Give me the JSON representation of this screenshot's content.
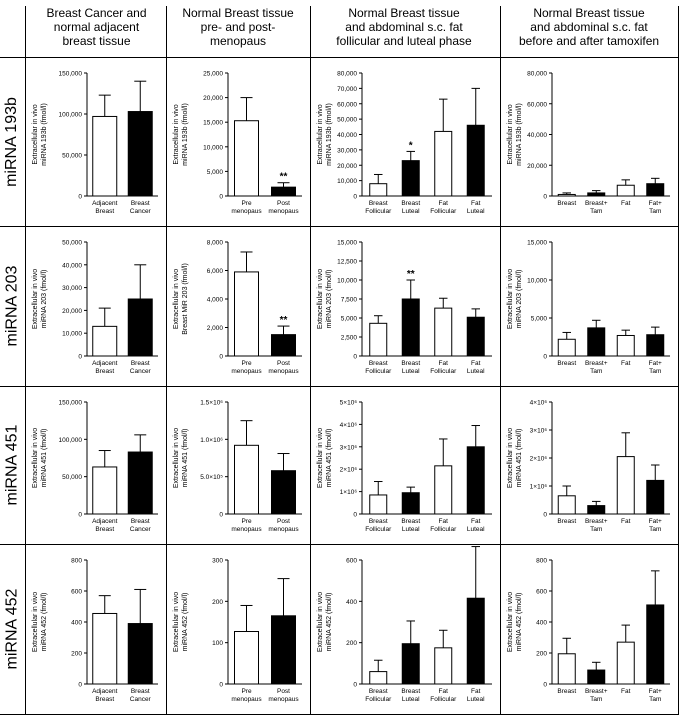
{
  "column_headers": [
    "Breast Cancer and\nnormal adjacent\nbreast tissue",
    "Normal Breast tissue\npre- and post-\nmenopaus",
    "Normal Breast tissue\nand abdominal s.c. fat\nfollicular and luteal phase",
    "Normal Breast tissue\nand abdominal s.c. fat\nbefore and after tamoxifen"
  ],
  "row_headers": [
    "miRNA 193b",
    "miRNA 203",
    "miRNA 451",
    "miRNA 452"
  ],
  "chart_data": [
    {
      "type": "bar",
      "row": 0,
      "col": 0,
      "ylabel": [
        "Extracellular in vivo",
        "miRNA 193b (fmol/l)"
      ],
      "ylim": [
        0,
        150000
      ],
      "ticks": [
        "0",
        "50,000",
        "100,000",
        "150,000"
      ],
      "categories": [
        [
          "Adjacent",
          "Breast"
        ],
        [
          "Breast",
          "Cancer"
        ]
      ],
      "values": [
        97000,
        103000
      ],
      "errors": [
        26000,
        37000
      ],
      "fills": [
        "white",
        "black"
      ],
      "annotations": [
        "",
        ""
      ]
    },
    {
      "type": "bar",
      "row": 0,
      "col": 1,
      "ylabel": [
        "Extracellular in vivo",
        "miRNA 193b (fmol/l)"
      ],
      "ylim": [
        0,
        25000
      ],
      "ticks": [
        "0",
        "5,000",
        "10,000",
        "15,000",
        "20,000",
        "25,000"
      ],
      "categories": [
        [
          "Pre",
          "menopaus"
        ],
        [
          "Post",
          "menopaus"
        ]
      ],
      "values": [
        15300,
        1800
      ],
      "errors": [
        4700,
        900
      ],
      "fills": [
        "white",
        "black"
      ],
      "annotations": [
        "",
        "**"
      ]
    },
    {
      "type": "bar",
      "row": 0,
      "col": 2,
      "ylabel": [
        "Extracellular in vivo",
        "miRNA 193b (fmol/l)"
      ],
      "ylim": [
        0,
        80000
      ],
      "ticks": [
        "0",
        "10,000",
        "20,000",
        "30,000",
        "40,000",
        "50,000",
        "60,000",
        "70,000",
        "80,000"
      ],
      "categories": [
        [
          "Breast",
          "Follicular"
        ],
        [
          "Breast",
          "Luteal"
        ],
        [
          "Fat",
          "Follicular"
        ],
        [
          "Fat",
          "Luteal"
        ]
      ],
      "values": [
        8000,
        23000,
        42000,
        46000
      ],
      "errors": [
        6000,
        6000,
        21000,
        24000
      ],
      "fills": [
        "white",
        "black",
        "white",
        "black"
      ],
      "annotations": [
        "",
        "*",
        "",
        ""
      ]
    },
    {
      "type": "bar",
      "row": 0,
      "col": 3,
      "ylabel": [
        "Extracellular in vivo",
        "miRNA 193b (fmol/l)"
      ],
      "ylim": [
        0,
        80000
      ],
      "ticks": [
        "0",
        "20,000",
        "40,000",
        "60,000",
        "80,000"
      ],
      "categories": [
        [
          "Breast"
        ],
        [
          "Breast+",
          "Tam"
        ],
        [
          "Fat"
        ],
        [
          "Fat+",
          "Tam"
        ]
      ],
      "values": [
        1000,
        2000,
        7000,
        8000
      ],
      "errors": [
        1000,
        1500,
        3500,
        3500
      ],
      "fills": [
        "white",
        "black",
        "white",
        "black"
      ],
      "annotations": [
        "",
        "",
        "",
        ""
      ]
    },
    {
      "type": "bar",
      "row": 1,
      "col": 0,
      "ylabel": [
        "Extracellular in vivo",
        "miRNA 203 (fmol/l)"
      ],
      "ylim": [
        0,
        50000
      ],
      "ticks": [
        "0",
        "10,000",
        "20,000",
        "30,000",
        "40,000",
        "50,000"
      ],
      "categories": [
        [
          "Adjacent",
          "Breast"
        ],
        [
          "Breast",
          "Cancer"
        ]
      ],
      "values": [
        13000,
        25000
      ],
      "errors": [
        8000,
        15000
      ],
      "fills": [
        "white",
        "black"
      ],
      "annotations": [
        "",
        ""
      ]
    },
    {
      "type": "bar",
      "row": 1,
      "col": 1,
      "ylabel": [
        "Extracellular in vivo",
        "Breast MiR 203 (fmol/l)"
      ],
      "ylim": [
        0,
        8000
      ],
      "ticks": [
        "0",
        "2,000",
        "4,000",
        "6,000",
        "8,000"
      ],
      "categories": [
        [
          "Pre",
          "menopaus"
        ],
        [
          "Post",
          "menopaus"
        ]
      ],
      "values": [
        5900,
        1500
      ],
      "errors": [
        1400,
        600
      ],
      "fills": [
        "white",
        "black"
      ],
      "annotations": [
        "",
        "**"
      ]
    },
    {
      "type": "bar",
      "row": 1,
      "col": 2,
      "ylabel": [
        "Extracellular in vivo",
        "miRNA 203 (fmol/l)"
      ],
      "ylim": [
        0,
        15000
      ],
      "ticks": [
        "0",
        "2,500",
        "5,000",
        "7,500",
        "10,000",
        "12,500",
        "15,000"
      ],
      "categories": [
        [
          "Breast",
          "Follicular"
        ],
        [
          "Breast",
          "Luteal"
        ],
        [
          "Fat",
          "Follicular"
        ],
        [
          "Fat",
          "Luteal"
        ]
      ],
      "values": [
        4300,
        7500,
        6300,
        5100
      ],
      "errors": [
        1000,
        2500,
        1300,
        1100
      ],
      "fills": [
        "white",
        "black",
        "white",
        "black"
      ],
      "annotations": [
        "",
        "**",
        "",
        ""
      ]
    },
    {
      "type": "bar",
      "row": 1,
      "col": 3,
      "ylabel": [
        "Extracellular in vivo",
        "miRNA 203 (fmol/l)"
      ],
      "ylim": [
        0,
        15000
      ],
      "ticks": [
        "0",
        "5,000",
        "10,000",
        "15,000"
      ],
      "categories": [
        [
          "Breast"
        ],
        [
          "Breast+",
          "Tam"
        ],
        [
          "Fat"
        ],
        [
          "Fat+",
          "Tam"
        ]
      ],
      "values": [
        2200,
        3700,
        2700,
        2800
      ],
      "errors": [
        900,
        1000,
        700,
        1000
      ],
      "fills": [
        "white",
        "black",
        "white",
        "black"
      ],
      "annotations": [
        "",
        "",
        "",
        ""
      ]
    },
    {
      "type": "bar",
      "row": 2,
      "col": 0,
      "ylabel": [
        "Extracellular in vivo",
        "miRNA 451 (fmol/l)"
      ],
      "ylim": [
        0,
        150000
      ],
      "ticks": [
        "0",
        "50,000",
        "100,000",
        "150,000"
      ],
      "categories": [
        [
          "Adjacent",
          "Breast"
        ],
        [
          "Breast",
          "Cancer"
        ]
      ],
      "values": [
        63000,
        83000
      ],
      "errors": [
        22000,
        23000
      ],
      "fills": [
        "white",
        "black"
      ],
      "annotations": [
        "",
        ""
      ]
    },
    {
      "type": "bar",
      "row": 2,
      "col": 1,
      "ylabel": [
        "Extracellular in vivo",
        "miRNA 451 (fmol/l)"
      ],
      "ylim": [
        0,
        1500000
      ],
      "ticks": [
        "0",
        "5.0×10⁵",
        "1.0×10⁶",
        "1.5×10⁶"
      ],
      "categories": [
        [
          "Pre",
          "menopaus"
        ],
        [
          "Post",
          "menopaus"
        ]
      ],
      "values": [
        920000,
        580000
      ],
      "errors": [
        330000,
        230000
      ],
      "fills": [
        "white",
        "black"
      ],
      "annotations": [
        "",
        ""
      ]
    },
    {
      "type": "bar",
      "row": 2,
      "col": 2,
      "ylabel": [
        "Extracellular in vivo",
        "miRNA 451 (fmol/l)"
      ],
      "ylim": [
        0,
        5000000
      ],
      "ticks": [
        "0",
        "1×10⁶",
        "2×10⁶",
        "3×10⁶",
        "4×10⁶",
        "5×10⁶"
      ],
      "categories": [
        [
          "Breast",
          "Follicular"
        ],
        [
          "Breast",
          "Luteal"
        ],
        [
          "Fat",
          "Follicular"
        ],
        [
          "Fat",
          "Luteal"
        ]
      ],
      "values": [
        850000,
        950000,
        2150000,
        3000000
      ],
      "errors": [
        600000,
        250000,
        1200000,
        950000
      ],
      "fills": [
        "white",
        "black",
        "white",
        "black"
      ],
      "annotations": [
        "",
        "",
        "",
        ""
      ]
    },
    {
      "type": "bar",
      "row": 2,
      "col": 3,
      "ylabel": [
        "Extracellular in vivo",
        "miRNA 451 (fmol/l)"
      ],
      "ylim": [
        0,
        4000000
      ],
      "ticks": [
        "0",
        "1×10⁶",
        "2×10⁶",
        "3×10⁶",
        "4×10⁶"
      ],
      "categories": [
        [
          "Breast"
        ],
        [
          "Breast+",
          "Tam"
        ],
        [
          "Fat"
        ],
        [
          "Fat+",
          "Tam"
        ]
      ],
      "values": [
        650000,
        300000,
        2050000,
        1200000
      ],
      "errors": [
        350000,
        150000,
        850000,
        550000
      ],
      "fills": [
        "white",
        "black",
        "white",
        "black"
      ],
      "annotations": [
        "",
        "",
        "",
        ""
      ]
    },
    {
      "type": "bar",
      "row": 3,
      "col": 0,
      "ylabel": [
        "Extracellular in vivo",
        "miRNA 452 (fmol/l)"
      ],
      "ylim": [
        0,
        800
      ],
      "ticks": [
        "0",
        "200",
        "400",
        "600",
        "800"
      ],
      "categories": [
        [
          "Adjacent",
          "Breast"
        ],
        [
          "Breast",
          "Cancer"
        ]
      ],
      "values": [
        455,
        390
      ],
      "errors": [
        115,
        220
      ],
      "fills": [
        "white",
        "black"
      ],
      "annotations": [
        "",
        ""
      ]
    },
    {
      "type": "bar",
      "row": 3,
      "col": 1,
      "ylabel": [
        "Extracellular in vivo",
        "miRNA 452 (fmol/l)"
      ],
      "ylim": [
        0,
        300
      ],
      "ticks": [
        "0",
        "100",
        "200",
        "300"
      ],
      "categories": [
        [
          "Pre",
          "menopaus"
        ],
        [
          "Post",
          "menopaus"
        ]
      ],
      "values": [
        127,
        165
      ],
      "errors": [
        63,
        90
      ],
      "fills": [
        "white",
        "black"
      ],
      "annotations": [
        "",
        ""
      ]
    },
    {
      "type": "bar",
      "row": 3,
      "col": 2,
      "ylabel": [
        "Extracellular in vivo",
        "miRNA 452 (fmol/l)"
      ],
      "ylim": [
        0,
        600
      ],
      "ticks": [
        "0",
        "200",
        "400",
        "600"
      ],
      "categories": [
        [
          "Breast",
          "Follicular"
        ],
        [
          "Breast",
          "Luteal"
        ],
        [
          "Fat",
          "Follicular"
        ],
        [
          "Fat",
          "Luteal"
        ]
      ],
      "values": [
        60,
        195,
        175,
        415
      ],
      "errors": [
        55,
        110,
        85,
        250
      ],
      "fills": [
        "white",
        "black",
        "white",
        "black"
      ],
      "annotations": [
        "",
        "",
        "",
        ""
      ]
    },
    {
      "type": "bar",
      "row": 3,
      "col": 3,
      "ylabel": [
        "Extracellular in vivo",
        "miRNA 452 (fmol/l)"
      ],
      "ylim": [
        0,
        800
      ],
      "ticks": [
        "0",
        "200",
        "400",
        "600",
        "800"
      ],
      "categories": [
        [
          "Breast"
        ],
        [
          "Breast+",
          "Tam"
        ],
        [
          "Fat"
        ],
        [
          "Fat+",
          "Tam"
        ]
      ],
      "values": [
        195,
        90,
        270,
        510
      ],
      "errors": [
        100,
        50,
        110,
        220
      ],
      "fills": [
        "white",
        "black",
        "white",
        "black"
      ],
      "annotations": [
        "",
        "",
        "",
        ""
      ]
    }
  ]
}
